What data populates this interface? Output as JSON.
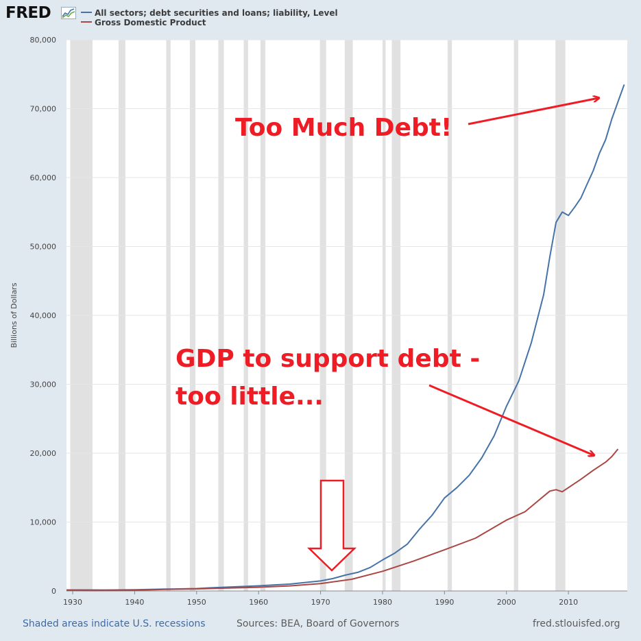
{
  "brand": {
    "logo_text": "FRED"
  },
  "chart_data": {
    "type": "line",
    "title": "",
    "xlabel": "",
    "ylabel": "Billions of Dollars",
    "xlim": [
      1929,
      2019.5
    ],
    "ylim": [
      0,
      80000
    ],
    "x_ticks": [
      "1930",
      "1940",
      "1950",
      "1960",
      "1970",
      "1980",
      "1990",
      "2000",
      "2010"
    ],
    "y_ticks": [
      "0",
      "10,000",
      "20,000",
      "30,000",
      "40,000",
      "50,000",
      "60,000",
      "70,000",
      "80,000"
    ],
    "grid": true,
    "legend_position": "top-left",
    "recessions": [
      [
        1929.6,
        1933.2
      ],
      [
        1937.4,
        1938.5
      ],
      [
        1945.1,
        1945.8
      ],
      [
        1948.9,
        1949.8
      ],
      [
        1953.5,
        1954.4
      ],
      [
        1957.6,
        1958.3
      ],
      [
        1960.3,
        1961.1
      ],
      [
        1969.9,
        1970.9
      ],
      [
        1973.9,
        1975.2
      ],
      [
        1980.0,
        1980.5
      ],
      [
        1981.5,
        1982.9
      ],
      [
        1990.5,
        1991.2
      ],
      [
        2001.2,
        2001.9
      ],
      [
        2007.9,
        2009.5
      ]
    ],
    "series": [
      {
        "name": "All sectors; debt securities and loans; liability, Level",
        "color": "#4572a7",
        "points": [
          [
            1929,
            150
          ],
          [
            1935,
            140
          ],
          [
            1940,
            180
          ],
          [
            1945,
            270
          ],
          [
            1950,
            350
          ],
          [
            1952,
            450
          ],
          [
            1955,
            560
          ],
          [
            1960,
            750
          ],
          [
            1965,
            1000
          ],
          [
            1970,
            1450
          ],
          [
            1972,
            1800
          ],
          [
            1974,
            2300
          ],
          [
            1976,
            2700
          ],
          [
            1978,
            3400
          ],
          [
            1980,
            4500
          ],
          [
            1982,
            5500
          ],
          [
            1984,
            6800
          ],
          [
            1986,
            9000
          ],
          [
            1988,
            11000
          ],
          [
            1990,
            13500
          ],
          [
            1992,
            15000
          ],
          [
            1994,
            16800
          ],
          [
            1996,
            19300
          ],
          [
            1998,
            22500
          ],
          [
            2000,
            26800
          ],
          [
            2002,
            30500
          ],
          [
            2004,
            36000
          ],
          [
            2006,
            43000
          ],
          [
            2007,
            48500
          ],
          [
            2008,
            53500
          ],
          [
            2009,
            55000
          ],
          [
            2010,
            54500
          ],
          [
            2011,
            55700
          ],
          [
            2012,
            57000
          ],
          [
            2013,
            59000
          ],
          [
            2014,
            61000
          ],
          [
            2015,
            63500
          ],
          [
            2016,
            65500
          ],
          [
            2017,
            68500
          ],
          [
            2018,
            71000
          ],
          [
            2019,
            73500
          ]
        ]
      },
      {
        "name": "Gross Domestic Product",
        "color": "#aa4643",
        "points": [
          [
            1929,
            105
          ],
          [
            1933,
            60
          ],
          [
            1940,
            100
          ],
          [
            1945,
            230
          ],
          [
            1950,
            300
          ],
          [
            1955,
            430
          ],
          [
            1960,
            540
          ],
          [
            1965,
            740
          ],
          [
            1970,
            1070
          ],
          [
            1975,
            1690
          ],
          [
            1980,
            2860
          ],
          [
            1985,
            4340
          ],
          [
            1990,
            5980
          ],
          [
            1995,
            7660
          ],
          [
            2000,
            10280
          ],
          [
            2003,
            11500
          ],
          [
            2005,
            13000
          ],
          [
            2007,
            14500
          ],
          [
            2008,
            14700
          ],
          [
            2009,
            14400
          ],
          [
            2010,
            15000
          ],
          [
            2012,
            16200
          ],
          [
            2014,
            17500
          ],
          [
            2016,
            18700
          ],
          [
            2017,
            19500
          ],
          [
            2018,
            20600
          ]
        ]
      }
    ]
  },
  "annotations": {
    "too_much_debt": "Too Much Debt!",
    "gdp_line1": "GDP to support debt -",
    "gdp_line2": "too little..."
  },
  "footer": {
    "recession_note": "Shaded areas indicate U.S. recessions",
    "sources": "Sources: BEA, Board of Governors",
    "site": "fred.stlouisfed.org"
  }
}
